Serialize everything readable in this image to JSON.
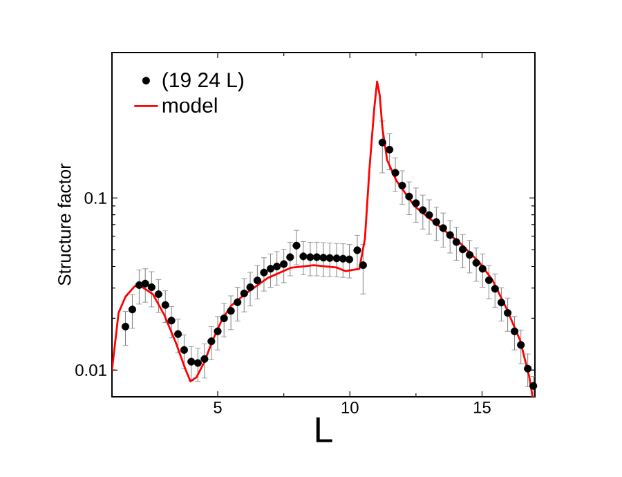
{
  "chart_data": {
    "type": "scatter",
    "xlabel": "L",
    "ylabel": "Structure factor",
    "xlim": [
      1,
      17
    ],
    "ylim": [
      0.007,
      0.7
    ],
    "xticks": [
      5,
      10,
      15
    ],
    "yticks": [
      0.01,
      0.1
    ],
    "log": "y",
    "grid": false,
    "legend": "top left",
    "series": [
      {
        "name": "(19 24 L)",
        "color": "#000000",
        "marker": "circle",
        "x": [
          1.51,
          1.77,
          2.03,
          2.26,
          2.5,
          2.76,
          3.02,
          3.25,
          3.5,
          3.73,
          4.0,
          4.25,
          4.5,
          4.76,
          5.0,
          5.24,
          5.5,
          5.75,
          6.0,
          6.23,
          6.5,
          6.75,
          7.0,
          7.24,
          7.5,
          7.74,
          7.98,
          8.24,
          8.5,
          8.75,
          9.0,
          9.24,
          9.5,
          9.74,
          9.98,
          10.28,
          10.5,
          11.23,
          11.5,
          11.72,
          11.98,
          12.24,
          12.5,
          12.76,
          13.0,
          13.27,
          13.53,
          13.79,
          14.03,
          14.27,
          14.53,
          14.78,
          15.02,
          15.26,
          15.49,
          15.73,
          15.97,
          16.23,
          16.47,
          16.73,
          16.94
        ],
        "values": [
          0.0179,
          0.0225,
          0.0312,
          0.0318,
          0.0303,
          0.0276,
          0.0239,
          0.0194,
          0.0162,
          0.0131,
          0.0112,
          0.011,
          0.0116,
          0.0147,
          0.0168,
          0.02,
          0.0221,
          0.0248,
          0.0279,
          0.0303,
          0.0332,
          0.0369,
          0.0388,
          0.04,
          0.0413,
          0.0453,
          0.0529,
          0.0458,
          0.0453,
          0.0453,
          0.045,
          0.0448,
          0.0446,
          0.0444,
          0.044,
          0.0497,
          0.0407,
          0.21,
          0.191,
          0.14,
          0.118,
          0.102,
          0.0933,
          0.085,
          0.0796,
          0.0725,
          0.0668,
          0.0609,
          0.0555,
          0.0503,
          0.0467,
          0.042,
          0.0388,
          0.0333,
          0.0297,
          0.0247,
          0.0215,
          0.0168,
          0.014,
          0.0102,
          0.0081
        ],
        "errors": [
          0.004,
          0.005,
          0.007,
          0.007,
          0.007,
          0.006,
          0.005,
          0.004,
          0.0036,
          0.0029,
          0.0025,
          0.0024,
          0.0026,
          0.0032,
          0.0037,
          0.0044,
          0.0049,
          0.0055,
          0.0061,
          0.0067,
          0.0073,
          0.0081,
          0.0085,
          0.0088,
          0.0091,
          0.01,
          0.012,
          0.01,
          0.01,
          0.01,
          0.01,
          0.0099,
          0.0098,
          0.0098,
          0.0097,
          0.011,
          0.013,
          0.07,
          0.045,
          0.031,
          0.026,
          0.022,
          0.021,
          0.019,
          0.018,
          0.016,
          0.015,
          0.013,
          0.012,
          0.011,
          0.01,
          0.0092,
          0.0085,
          0.0073,
          0.0065,
          0.0054,
          0.0047,
          0.0037,
          0.0031,
          0.0022,
          0.0011
        ]
      },
      {
        "name": "model",
        "type": "line",
        "color": "#ff0000",
        "marker": "none",
        "line_style": "solid",
        "x": [
          1.0,
          1.25,
          1.51,
          1.86,
          2.03,
          2.55,
          2.98,
          3.42,
          3.77,
          3.97,
          4.2,
          4.5,
          4.81,
          5.16,
          5.5,
          6.03,
          6.89,
          7.76,
          8.63,
          9.49,
          9.84,
          10.36,
          10.57,
          10.74,
          10.92,
          11.03,
          11.13,
          11.23,
          11.41,
          11.76,
          12.45,
          13.32,
          14.18,
          14.88,
          15.4,
          15.92,
          16.44,
          16.79,
          16.91
        ],
        "values": [
          0.01,
          0.0215,
          0.0267,
          0.0307,
          0.0312,
          0.0276,
          0.0209,
          0.0144,
          0.0102,
          0.0086,
          0.0091,
          0.0112,
          0.0149,
          0.0196,
          0.0236,
          0.0276,
          0.0343,
          0.0393,
          0.0407,
          0.0395,
          0.0376,
          0.0388,
          0.058,
          0.147,
          0.328,
          0.475,
          0.395,
          0.256,
          0.166,
          0.126,
          0.0895,
          0.0698,
          0.0545,
          0.0426,
          0.0333,
          0.0229,
          0.0149,
          0.0091,
          0.007
        ]
      }
    ]
  }
}
